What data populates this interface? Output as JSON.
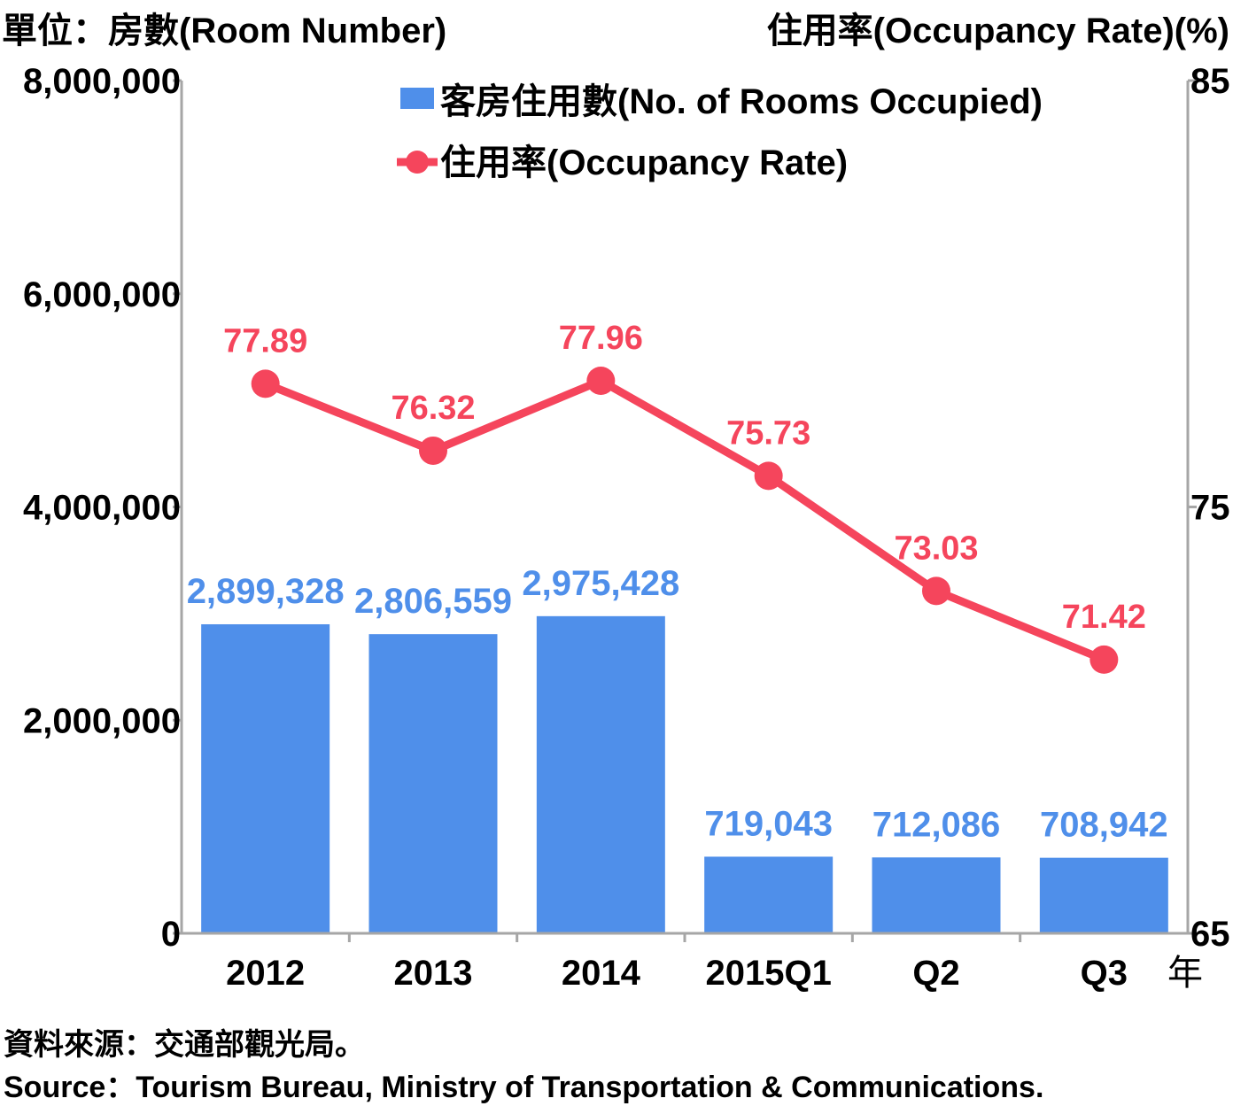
{
  "header": {
    "left_unit": "單位：房數(Room Number)",
    "right_unit": "住用率(Occupancy Rate)(%)"
  },
  "source": {
    "zh": "資料來源：交通部觀光局。",
    "en": "Source：Tourism Bureau, Ministry of Transportation & Communications."
  },
  "colors": {
    "bar": "#4f8fea",
    "line": "#f5455c",
    "axis": "#a6a6a6"
  },
  "chart_data": {
    "type": "bar",
    "categories": [
      "2012",
      "2013",
      "2014",
      "2015Q1",
      "Q2",
      "Q3"
    ],
    "x_unit_label": "年",
    "series": [
      {
        "name": "客房住用數(No. of Rooms Occupied)",
        "type": "bar",
        "axis": "left",
        "values": [
          2899328,
          2806559,
          2975428,
          719043,
          712086,
          708942
        ],
        "labels": [
          "2,899,328",
          "2,806,559",
          "2,975,428",
          "719,043",
          "712,086",
          "708,942"
        ]
      },
      {
        "name": "住用率(Occupancy Rate)",
        "type": "line",
        "axis": "right",
        "values": [
          77.89,
          76.32,
          77.96,
          75.73,
          73.03,
          71.42
        ],
        "labels": [
          "77.89",
          "76.32",
          "77.96",
          "75.73",
          "73.03",
          "71.42"
        ]
      }
    ],
    "left_axis": {
      "ylim": [
        0,
        8000000
      ],
      "ticks": [
        0,
        2000000,
        4000000,
        6000000,
        8000000
      ],
      "tick_labels": [
        "0",
        "2,000,000",
        "4,000,000",
        "6,000,000",
        "8,000,000"
      ]
    },
    "right_axis": {
      "ylim": [
        65,
        85
      ],
      "ticks": [
        65,
        75,
        85
      ],
      "tick_labels": [
        "65",
        "75",
        "85"
      ]
    },
    "legend": "top-center",
    "grid": false
  }
}
